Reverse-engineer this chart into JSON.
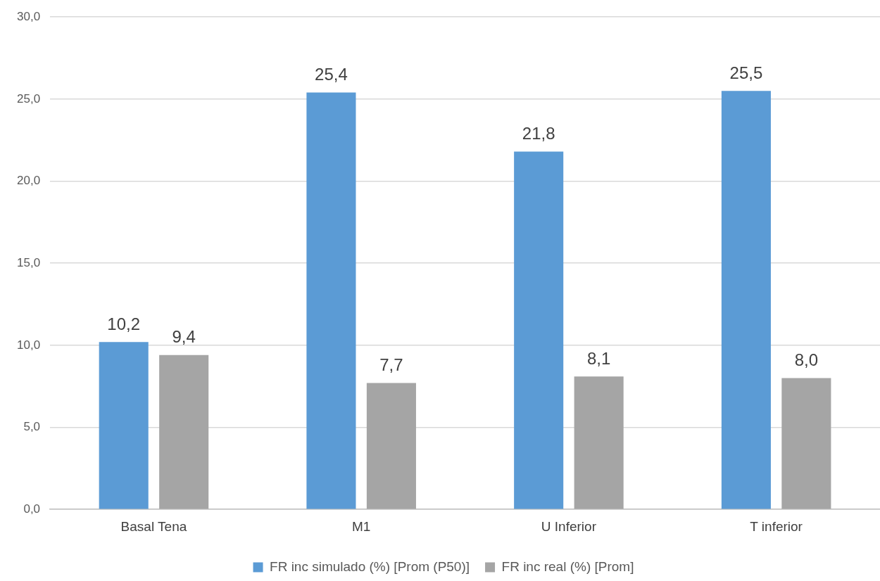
{
  "chart_data": {
    "type": "bar",
    "categories": [
      "Basal Tena",
      "M1",
      "U Inferior",
      "T inferior"
    ],
    "series": [
      {
        "name": "FR inc simulado (%) [Prom (P50)]",
        "color": "#5b9bd5",
        "values": [
          10.2,
          25.4,
          21.8,
          25.5
        ],
        "value_labels": [
          "10,2",
          "25,4",
          "21,8",
          "25,5"
        ]
      },
      {
        "name": "FR inc real (%) [Prom]",
        "color": "#a5a5a5",
        "values": [
          9.4,
          7.7,
          8.1,
          8.0
        ],
        "value_labels": [
          "9,4",
          "7,7",
          "8,1",
          "8,0"
        ]
      }
    ],
    "ylim": [
      0,
      30
    ],
    "yticks": [
      {
        "value": 0,
        "label": "0,0"
      },
      {
        "value": 5,
        "label": "5,0"
      },
      {
        "value": 10,
        "label": "10,0"
      },
      {
        "value": 15,
        "label": "15,0"
      },
      {
        "value": 20,
        "label": "20,0"
      },
      {
        "value": 25,
        "label": "25,0"
      },
      {
        "value": 30,
        "label": "30,0"
      }
    ],
    "grid": "y",
    "legend": "bottom"
  }
}
